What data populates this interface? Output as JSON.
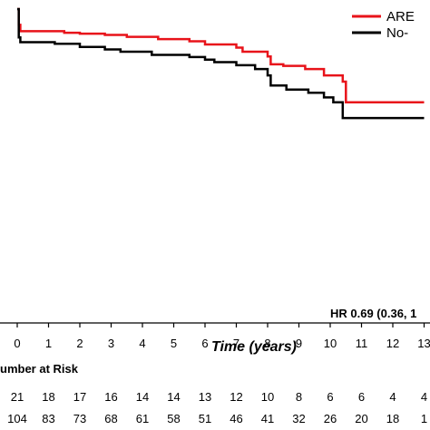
{
  "chart_data": {
    "type": "line",
    "step": true,
    "xlabel": "Time (years)",
    "ylabel": "",
    "xlim": [
      0,
      13
    ],
    "x_ticks": [
      0,
      1,
      2,
      3,
      4,
      5,
      6,
      7,
      8,
      9,
      10,
      11,
      12,
      13
    ],
    "ylim": [
      0,
      1
    ],
    "grid": false,
    "legend_placement": "top-right",
    "colors": {
      "series1": "#e8131a",
      "series2": "#000000"
    },
    "series": [
      {
        "name": "ARE",
        "x": [
          0,
          0.05,
          0.1,
          1.5,
          2.0,
          2.8,
          3.5,
          4.5,
          5.5,
          6.0,
          7.0,
          7.2,
          8.0,
          8.1,
          8.5,
          9.2,
          9.8,
          10.4,
          10.5,
          11.5,
          13
        ],
        "y": [
          1.0,
          0.95,
          0.93,
          0.925,
          0.922,
          0.918,
          0.912,
          0.905,
          0.898,
          0.888,
          0.878,
          0.865,
          0.85,
          0.825,
          0.82,
          0.81,
          0.79,
          0.77,
          0.705,
          0.705,
          0.705
        ]
      },
      {
        "name": "No-",
        "x": [
          0,
          0.05,
          0.1,
          1.2,
          2.0,
          2.8,
          3.3,
          4.3,
          5.5,
          6.0,
          6.3,
          7.0,
          7.6,
          8.0,
          8.1,
          8.6,
          9.3,
          9.8,
          10.1,
          10.4,
          13
        ],
        "y": [
          1.0,
          0.91,
          0.895,
          0.89,
          0.88,
          0.872,
          0.865,
          0.855,
          0.848,
          0.84,
          0.832,
          0.822,
          0.81,
          0.79,
          0.758,
          0.745,
          0.735,
          0.72,
          0.705,
          0.655,
          0.655
        ]
      }
    ],
    "annotation": "HR 0.69 (0.36, 1",
    "risk_table": {
      "title": "umber at Risk",
      "times": [
        0,
        1,
        2,
        3,
        4,
        5,
        6,
        7,
        8,
        9,
        10,
        11,
        12,
        13
      ],
      "rows": [
        {
          "name": "ARE",
          "values": [
            "21",
            "18",
            "17",
            "16",
            "14",
            "14",
            "13",
            "12",
            "10",
            "8",
            "6",
            "6",
            "4",
            "4"
          ]
        },
        {
          "name": "No-",
          "values": [
            "104",
            "83",
            "73",
            "68",
            "61",
            "58",
            "51",
            "46",
            "41",
            "32",
            "26",
            "20",
            "18",
            "1"
          ]
        }
      ]
    }
  }
}
